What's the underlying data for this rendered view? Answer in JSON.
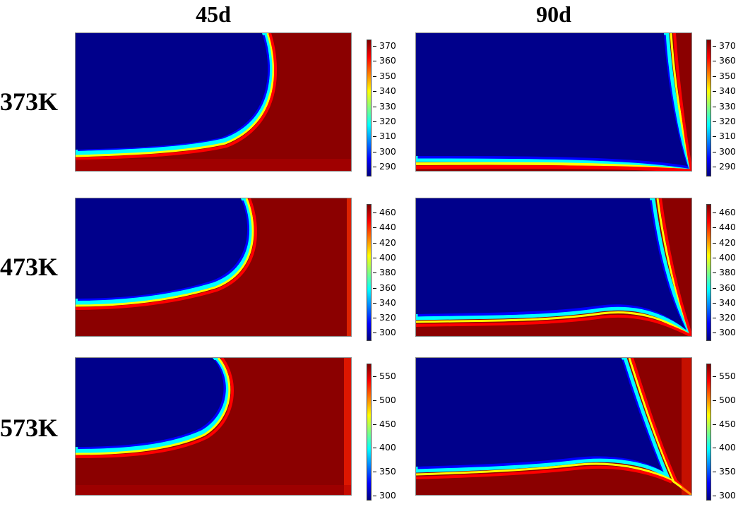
{
  "columns": [
    "45d",
    "90d"
  ],
  "rows": [
    "373K",
    "473K",
    "573K"
  ],
  "colormap": {
    "name": "jet",
    "stops": [
      "#00007f",
      "#0000ff",
      "#007fff",
      "#00ffff",
      "#7fff7f",
      "#ffff00",
      "#ff7f00",
      "#ff0000",
      "#7f0000"
    ]
  },
  "colorbars": [
    {
      "row": "373K",
      "ticks": [
        "370",
        "360",
        "350",
        "340",
        "330",
        "320",
        "310",
        "300",
        "290"
      ]
    },
    {
      "row": "473K",
      "ticks": [
        "460",
        "440",
        "420",
        "400",
        "380",
        "360",
        "340",
        "320",
        "300"
      ]
    },
    {
      "row": "573K",
      "ticks": [
        "550",
        "500",
        "450",
        "400",
        "350",
        "300"
      ]
    }
  ],
  "colors": {
    "cold": "#00008b",
    "hot": "#8b0000",
    "front": [
      "#ff0000",
      "#ffff00",
      "#00ffff",
      "#0080ff"
    ]
  }
}
